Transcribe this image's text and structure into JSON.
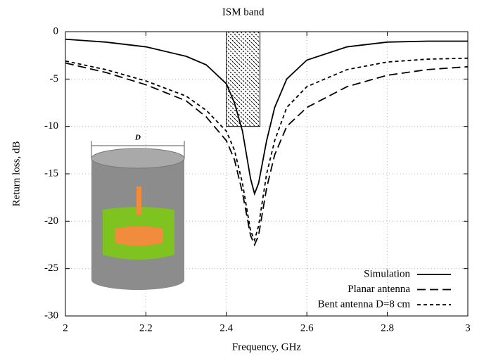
{
  "chart_data": {
    "type": "line",
    "xlabel": "Frequency, GHz",
    "ylabel": "Return loss, dB",
    "x": [
      2.0,
      2.1,
      2.2,
      2.3,
      2.35,
      2.4,
      2.42,
      2.44,
      2.46,
      2.47,
      2.48,
      2.5,
      2.52,
      2.55,
      2.6,
      2.7,
      2.8,
      2.9,
      3.0
    ],
    "series": [
      {
        "name": "Simulation",
        "color": "#000000",
        "dash": "solid",
        "values": [
          -0.8,
          -1.1,
          -1.6,
          -2.6,
          -3.5,
          -5.5,
          -7.5,
          -10.5,
          -15.5,
          -17.1,
          -16,
          -11.5,
          -8,
          -5,
          -3,
          -1.6,
          -1.1,
          -1,
          -1
        ]
      },
      {
        "name": "Planar antenna",
        "color": "#000000",
        "dash": "long",
        "values": [
          -3.3,
          -4.3,
          -5.6,
          -7.3,
          -9,
          -11.5,
          -13.5,
          -17,
          -21.5,
          -22.5,
          -21.5,
          -16.5,
          -13,
          -10,
          -8,
          -5.8,
          -4.6,
          -4,
          -3.7
        ]
      },
      {
        "name": "Bent antenna D=8 cm",
        "color": "#000000",
        "dash": "short",
        "values": [
          -3.1,
          -4,
          -5.2,
          -6.8,
          -8.3,
          -10.5,
          -12.5,
          -16,
          -21,
          -22,
          -20.5,
          -15,
          -11.5,
          -8,
          -5.8,
          -4,
          -3.2,
          -2.9,
          -2.8
        ]
      }
    ],
    "xlim": [
      2,
      3
    ],
    "xticks": [
      2,
      2.2,
      2.4,
      2.6,
      2.8,
      3
    ],
    "ylim": [
      -30,
      0
    ],
    "yticks": [
      -30,
      -25,
      -20,
      -15,
      -10,
      -5,
      0
    ],
    "grid": true,
    "legend": "lower right",
    "ism_band": {
      "label": "ISM band",
      "xlim": [
        2.4,
        2.4835
      ],
      "ylim": [
        -10,
        0
      ]
    },
    "inset_label": "D"
  }
}
